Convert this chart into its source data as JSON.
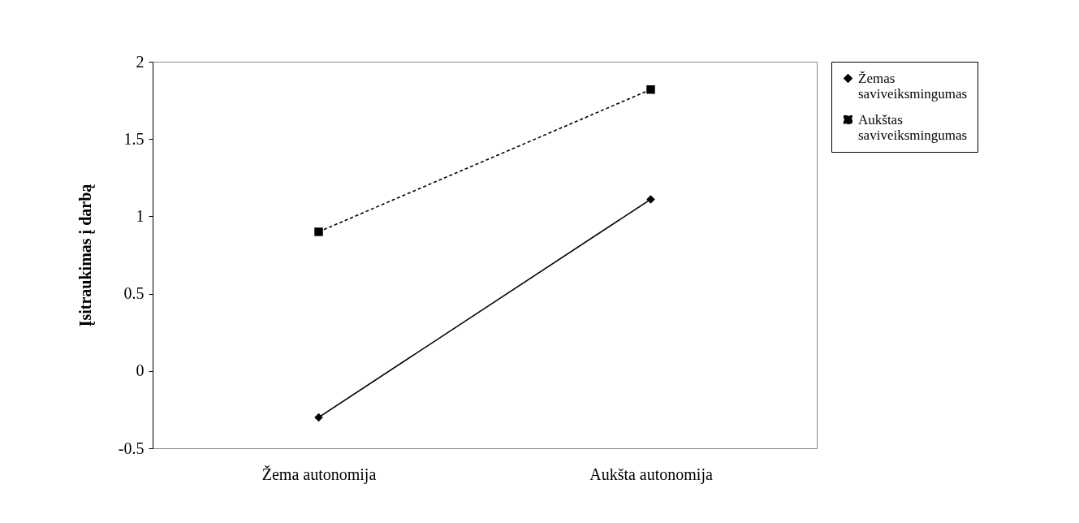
{
  "chart_data": {
    "type": "line",
    "ylabel": "Įsitraukimas į darbą",
    "categories": [
      "Žema autonomija",
      "Aukšta autonomija"
    ],
    "series": [
      {
        "name": "Žemas saviveiksmingumas",
        "color": "#000000",
        "values": [
          -0.3,
          1.11
        ],
        "marker": "diamond",
        "line_style": "solid"
      },
      {
        "name": "Aukštas saviveiksmingumas",
        "color": "#000000",
        "values": [
          0.9,
          1.82
        ],
        "marker": "square",
        "line_style": "dashed"
      }
    ],
    "ylim": [
      -0.5,
      2
    ],
    "yticks": [
      -0.5,
      0,
      0.5,
      1,
      1.5,
      2
    ],
    "grid": false,
    "legend": "right"
  }
}
